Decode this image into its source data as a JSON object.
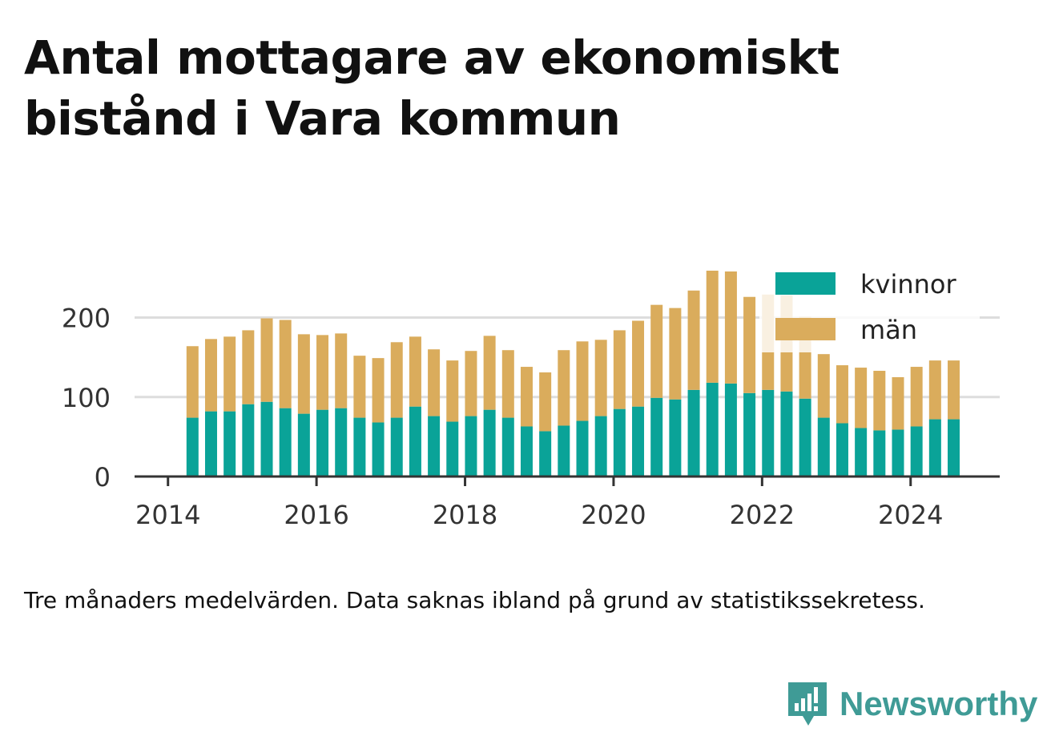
{
  "title": "Antal mottagare av ekonomiskt bistånd i Vara kommun",
  "note": "Tre månaders medelvärden. Data saknas ibland på grund av statistikssekretess.",
  "brand": {
    "name": "Newsworthy",
    "icon": "newsworthy-logo-icon",
    "color": "#3f9b96"
  },
  "chart_data": {
    "type": "bar",
    "stacked": true,
    "x_tick_labels": [
      "2014",
      "2016",
      "2018",
      "2020",
      "2022",
      "2024"
    ],
    "x_tick_years": [
      2014,
      2016,
      2018,
      2020,
      2022,
      2024
    ],
    "xlim": [
      2013.55,
      2025.2
    ],
    "y_ticks": [
      0,
      100,
      200
    ],
    "ylim": [
      0,
      262
    ],
    "grid": true,
    "legend_position": "top-right",
    "x": [
      2014.33,
      2014.58,
      2014.83,
      2015.08,
      2015.33,
      2015.58,
      2015.83,
      2016.08,
      2016.33,
      2016.58,
      2016.83,
      2017.08,
      2017.33,
      2017.58,
      2017.83,
      2018.08,
      2018.33,
      2018.58,
      2018.83,
      2019.08,
      2019.33,
      2019.58,
      2019.83,
      2020.08,
      2020.33,
      2020.58,
      2020.83,
      2021.08,
      2021.33,
      2021.58,
      2021.83,
      2022.08,
      2022.33,
      2022.58,
      2022.83,
      2023.08,
      2023.33,
      2023.58,
      2023.83,
      2024.08,
      2024.33,
      2024.58
    ],
    "series": [
      {
        "name": "kvinnor",
        "color": "#0aa398",
        "values": [
          74,
          82,
          82,
          91,
          94,
          86,
          79,
          84,
          86,
          74,
          68,
          74,
          88,
          76,
          69,
          76,
          84,
          74,
          63,
          57,
          64,
          70,
          76,
          85,
          88,
          99,
          97,
          109,
          118,
          117,
          105,
          109,
          107,
          98,
          74,
          67,
          61,
          58,
          59,
          63,
          72,
          72
        ]
      },
      {
        "name": "män",
        "color": "#daac5c",
        "values": [
          90,
          91,
          94,
          93,
          105,
          111,
          100,
          94,
          94,
          78,
          81,
          95,
          88,
          84,
          77,
          82,
          93,
          85,
          75,
          74,
          95,
          100,
          96,
          99,
          108,
          117,
          115,
          125,
          141,
          141,
          121,
          120,
          121,
          103,
          80,
          73,
          76,
          75,
          66,
          75,
          74,
          74
        ]
      }
    ]
  }
}
